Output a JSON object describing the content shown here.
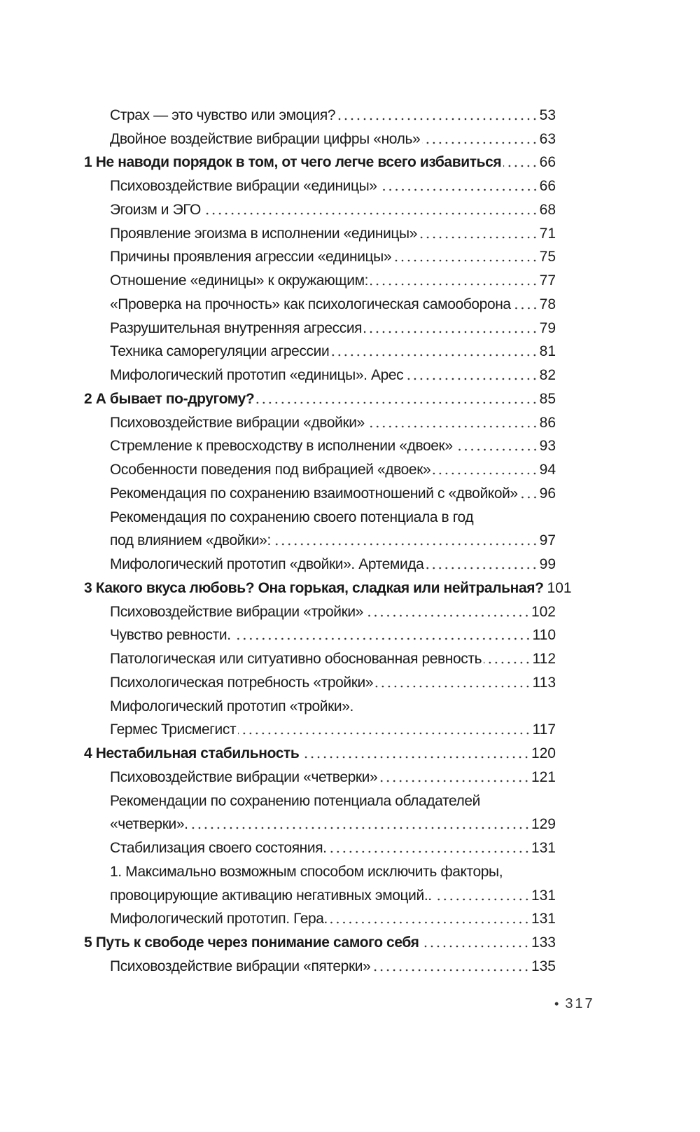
{
  "toc": [
    {
      "level": 1,
      "bold": false,
      "text": "Страх — это чувство или эмоция?",
      "page": "53"
    },
    {
      "level": 1,
      "bold": false,
      "text": "Двойное воздействие вибрации цифры «ноль»",
      "page": "63"
    },
    {
      "level": 0,
      "bold": true,
      "text": "1 Не наводи порядок в том, от чего легче всего избавиться",
      "page": "66"
    },
    {
      "level": 1,
      "bold": false,
      "text": "Психовоздействие вибрации «единицы»",
      "page": "66"
    },
    {
      "level": 1,
      "bold": false,
      "text": "Эгоизм и ЭГО",
      "page": "68"
    },
    {
      "level": 1,
      "bold": false,
      "text": "Проявление эгоизма в исполнении «единицы»",
      "page": "71"
    },
    {
      "level": 1,
      "bold": false,
      "text": "Причины проявления агрессии «единицы»",
      "page": "75"
    },
    {
      "level": 1,
      "bold": false,
      "text": "Отношение «единицы» к окружающим:",
      "page": "77"
    },
    {
      "level": 1,
      "bold": false,
      "text": "«Проверка на прочность» как психологическая самооборона",
      "page": "78"
    },
    {
      "level": 1,
      "bold": false,
      "text": "Разрушительная внутренняя агрессия",
      "page": "79"
    },
    {
      "level": 1,
      "bold": false,
      "text": "Техника саморегуляции агрессии",
      "page": "81"
    },
    {
      "level": 1,
      "bold": false,
      "text": "Мифологический прототип «единицы». Арес",
      "page": "82"
    },
    {
      "level": 0,
      "bold": true,
      "text": "2 А бывает по-другому?",
      "page": "85"
    },
    {
      "level": 1,
      "bold": false,
      "text": "Психовоздействие вибрации «двойки»",
      "page": "86"
    },
    {
      "level": 1,
      "bold": false,
      "text": "Стремление к превосходству в исполнении «двоек»",
      "page": "93"
    },
    {
      "level": 1,
      "bold": false,
      "text": "Особенности поведения под вибрацией «двоек»",
      "page": "94"
    },
    {
      "level": 1,
      "bold": false,
      "text": "Рекомендация по сохранению взаимоотношений с «двойкой»",
      "page": "96"
    },
    {
      "level": 1,
      "bold": false,
      "text": "Рекомендация по сохранению своего потенциала в год",
      "page": ""
    },
    {
      "level": 1,
      "bold": false,
      "text": "под влиянием «двойки»:",
      "page": "97"
    },
    {
      "level": 1,
      "bold": false,
      "text": "Мифологический прототип «двойки». Артемида",
      "page": "99"
    },
    {
      "level": 0,
      "bold": true,
      "text": "3 Какого вкуса любовь? Она горькая, сладкая или нейтральная?",
      "page": "101"
    },
    {
      "level": 1,
      "bold": false,
      "text": "Психовоздействие вибрации «тройки»",
      "page": "102"
    },
    {
      "level": 1,
      "bold": false,
      "text": "Чувство ревности.",
      "page": "110"
    },
    {
      "level": 1,
      "bold": false,
      "text": "Патологическая или ситуативно обоснованная ревность",
      "page": "112"
    },
    {
      "level": 1,
      "bold": false,
      "text": "Психологическая потребность «тройки»",
      "page": "113"
    },
    {
      "level": 1,
      "bold": false,
      "text": "Мифологический прототип «тройки».",
      "page": ""
    },
    {
      "level": 1,
      "bold": false,
      "text": "Гермес Трисмегист",
      "page": "117"
    },
    {
      "level": 0,
      "bold": true,
      "text": "4 Нестабильная стабильность",
      "page": "120"
    },
    {
      "level": 1,
      "bold": false,
      "text": "Психовоздействие вибрации «четверки»",
      "page": "121"
    },
    {
      "level": 1,
      "bold": false,
      "text": "Рекомендации по сохранению потенциала обладателей",
      "page": ""
    },
    {
      "level": 1,
      "bold": false,
      "text": "«четверки».",
      "page": "129"
    },
    {
      "level": 1,
      "bold": false,
      "text": "Стабилизация своего состояния.",
      "page": "131"
    },
    {
      "level": 1,
      "bold": false,
      "text": "1. Максимально возможным способом исключить факторы,",
      "page": ""
    },
    {
      "level": 1,
      "bold": false,
      "text": "провоцирующие активацию негативных эмоций..",
      "page": "131"
    },
    {
      "level": 1,
      "bold": false,
      "text": "Мифологический прототип. Гера.",
      "page": "131"
    },
    {
      "level": 0,
      "bold": true,
      "text": "5  Путь к свободе через понимание самого себя",
      "page": "133"
    },
    {
      "level": 1,
      "bold": false,
      "text": "Психовоздействие вибрации «пятерки»",
      "page": "135"
    }
  ],
  "folio": {
    "bullet": "•",
    "page_number": "317"
  }
}
